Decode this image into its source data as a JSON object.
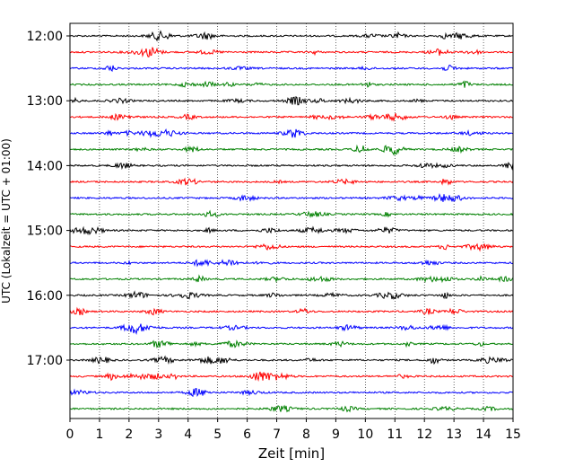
{
  "chart_data": {
    "type": "line",
    "title": "",
    "xlabel": "Zeit  [min]",
    "ylabel": "UTC (Lokalzeit = UTC + 01:00)",
    "xlim": [
      0,
      15
    ],
    "x_ticks": [
      "0",
      "1",
      "2",
      "3",
      "4",
      "5",
      "6",
      "7",
      "8",
      "9",
      "10",
      "11",
      "12",
      "13",
      "14",
      "15"
    ],
    "y_ticks": [
      "12:00",
      "13:00",
      "14:00",
      "15:00",
      "16:00",
      "17:00"
    ],
    "trace_interval_minutes": 15,
    "trace_start": "12:00",
    "trace_count": 24,
    "vertical_grid": "dotted",
    "trace_colors": [
      "#000000",
      "#ff0000",
      "#0000ff",
      "#008000"
    ],
    "traces": [
      {
        "start": "12:00",
        "color": "#000000"
      },
      {
        "start": "12:15",
        "color": "#ff0000"
      },
      {
        "start": "12:30",
        "color": "#0000ff"
      },
      {
        "start": "12:45",
        "color": "#008000"
      },
      {
        "start": "13:00",
        "color": "#000000"
      },
      {
        "start": "13:15",
        "color": "#ff0000"
      },
      {
        "start": "13:30",
        "color": "#0000ff"
      },
      {
        "start": "13:45",
        "color": "#008000"
      },
      {
        "start": "14:00",
        "color": "#000000"
      },
      {
        "start": "14:15",
        "color": "#ff0000"
      },
      {
        "start": "14:30",
        "color": "#0000ff"
      },
      {
        "start": "14:45",
        "color": "#008000"
      },
      {
        "start": "15:00",
        "color": "#000000"
      },
      {
        "start": "15:15",
        "color": "#ff0000"
      },
      {
        "start": "15:30",
        "color": "#0000ff"
      },
      {
        "start": "15:45",
        "color": "#008000"
      },
      {
        "start": "16:00",
        "color": "#000000"
      },
      {
        "start": "16:15",
        "color": "#ff0000"
      },
      {
        "start": "16:30",
        "color": "#0000ff"
      },
      {
        "start": "16:45",
        "color": "#008000"
      },
      {
        "start": "17:00",
        "color": "#000000"
      },
      {
        "start": "17:15",
        "color": "#ff0000"
      },
      {
        "start": "17:30",
        "color": "#0000ff"
      },
      {
        "start": "17:45",
        "color": "#008000"
      }
    ]
  }
}
